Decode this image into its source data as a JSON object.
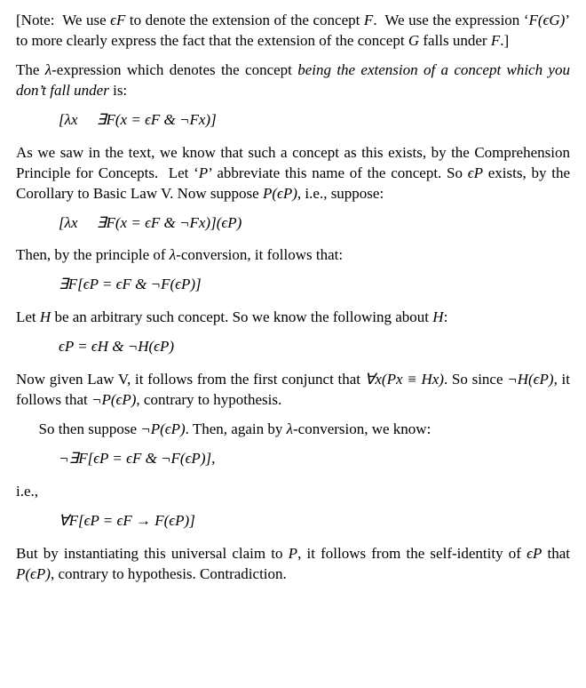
{
  "note": {
    "open": "[Note:  We use ",
    "eF": "ϵF",
    "mid1": " to denote the extension of the concept ",
    "F": "F",
    "mid2": ".  We use the expression ‘",
    "FeG": "F(ϵG)",
    "mid3": "’ to more clearly express the fact that the extension of the concept ",
    "G": "G",
    "mid4": " falls under ",
    "F2": "F",
    "close": ".]"
  },
  "p1": {
    "t1": "The ",
    "lam": "λ",
    "t2": "-expression which denotes the concept ",
    "em": "being the extension of a concept which you don’t fall under",
    "t3": " is:"
  },
  "f1": "[λx  ∃F(x = ϵF & ¬Fx)]",
  "p2": {
    "t1": "As we saw in the text, we know that such a concept as this exists, by the Comprehension Principle for Concepts.  Let ‘",
    "P": "P",
    "t2": "’ abbreviate this name of the concept. So ",
    "eP": "ϵP",
    "t3": " exists, by the Corollary to Basic Law V. Now suppose ",
    "PeP": "P(ϵP)",
    "t4": ", i.e., suppose:"
  },
  "f2": "[λx  ∃F(x = ϵF & ¬Fx)](ϵP)",
  "p3": {
    "t1": "Then, by the principle of ",
    "lam": "λ",
    "t2": "-conversion, it follows that:"
  },
  "f3": "∃F[ϵP = ϵF & ¬F(ϵP)]",
  "p4": {
    "t1": "Let ",
    "H": "H",
    "t2": " be an arbitrary such concept. So we know the following about ",
    "H2": "H",
    "t3": ":"
  },
  "f4": "ϵP = ϵH & ¬H(ϵP)",
  "p5": {
    "t1": "Now given Law V, it follows from the first conjunct that ",
    "eq": "∀x(Px ≡ Hx)",
    "t2": ". So since ",
    "nH": "¬H(ϵP)",
    "t3": ", it follows that ",
    "nP": "¬P(ϵP)",
    "t4": ", contrary to hypothesis."
  },
  "p6": {
    "t1": "So then suppose ",
    "nP": "¬P(ϵP)",
    "t2": ". Then, again by ",
    "lam": "λ",
    "t3": "-conversion, we know:"
  },
  "f5": "¬∃F[ϵP = ϵF & ¬F(ϵP)],",
  "p7": "i.e.,",
  "f6": "∀F[ϵP = ϵF → F(ϵP)]",
  "p8": {
    "t1": "But by instantiating this universal claim to ",
    "P": "P",
    "t2": ", it follows from the self-identity of ",
    "eP": "ϵP",
    "t3": " that ",
    "PeP": "P(ϵP)",
    "t4": ", contrary to hypothesis. Contradiction."
  }
}
